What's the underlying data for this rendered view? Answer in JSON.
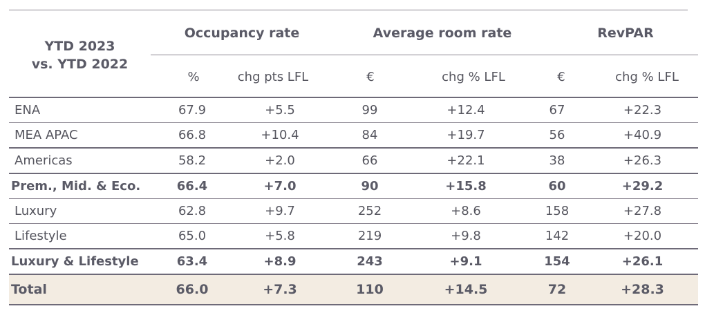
{
  "header": {
    "period_line1": "YTD 2023",
    "period_line2": "vs. YTD 2022",
    "groups": [
      "Occupancy rate",
      "Average room rate",
      "RevPAR"
    ],
    "subcols": [
      "%",
      "chg pts LFL",
      "€",
      "chg % LFL",
      "€",
      "chg % LFL"
    ]
  },
  "rows": [
    {
      "label": "ENA",
      "values": [
        "67.9",
        "+5.5",
        "99",
        "+12.4",
        "67",
        "+22.3"
      ],
      "bold": false
    },
    {
      "label": "MEA APAC",
      "values": [
        "66.8",
        "+10.4",
        "84",
        "+19.7",
        "56",
        "+40.9"
      ],
      "bold": false
    },
    {
      "label": "Americas",
      "values": [
        "58.2",
        "+2.0",
        "66",
        "+22.1",
        "38",
        "+26.3"
      ],
      "bold": false
    },
    {
      "label": "Prem., Mid. & Eco.",
      "values": [
        "66.4",
        "+7.0",
        "90",
        "+15.8",
        "60",
        "+29.2"
      ],
      "bold": true
    },
    {
      "label": "Luxury",
      "values": [
        "62.8",
        "+9.7",
        "252",
        "+8.6",
        "158",
        "+27.8"
      ],
      "bold": false
    },
    {
      "label": "Lifestyle",
      "values": [
        "65.0",
        "+5.8",
        "219",
        "+9.8",
        "142",
        "+20.0"
      ],
      "bold": false
    },
    {
      "label": "Luxury & Lifestyle",
      "values": [
        "63.4",
        "+8.9",
        "243",
        "+9.1",
        "154",
        "+26.1"
      ],
      "bold": true
    }
  ],
  "total": {
    "label": "Total",
    "values": [
      "66.0",
      "+7.3",
      "110",
      "+14.5",
      "72",
      "+28.3"
    ]
  }
}
